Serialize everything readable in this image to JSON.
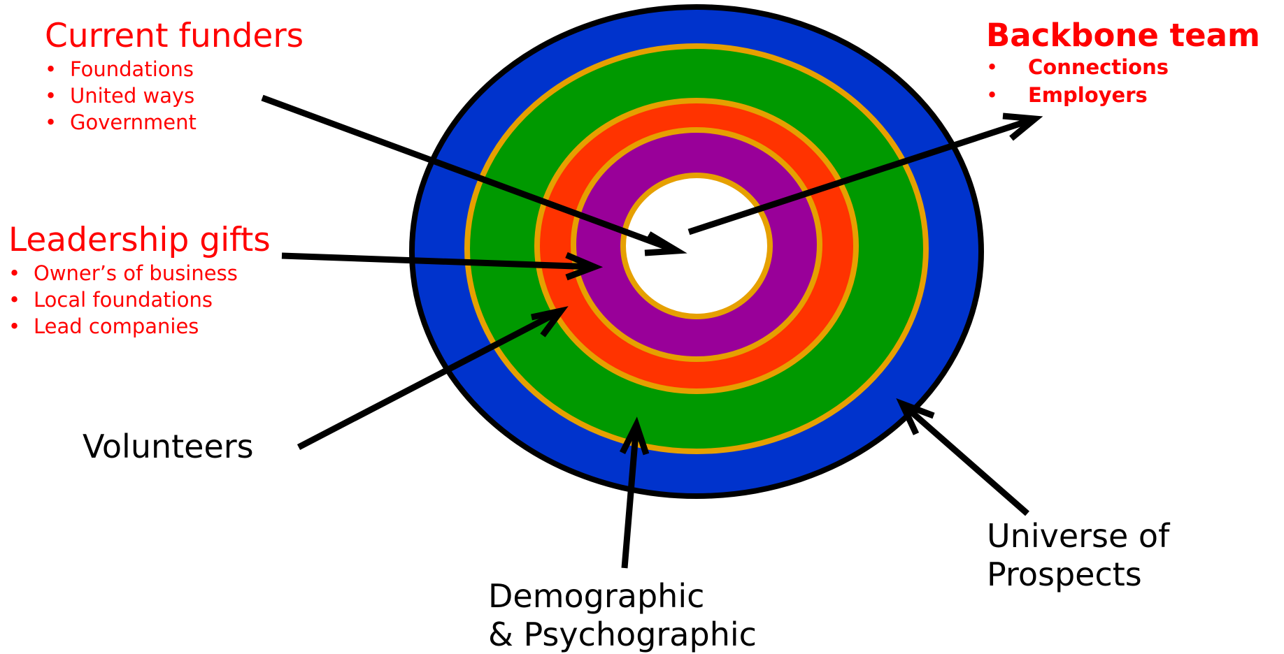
{
  "current_funders": {
    "title": "Current funders",
    "items": [
      "Foundations",
      "United ways",
      "Government"
    ]
  },
  "leadership_gifts": {
    "title": "Leadership gifts",
    "items": [
      "Owner’s of business",
      "Local foundations",
      "Lead companies"
    ]
  },
  "backbone_team": {
    "title": "Backbone team",
    "items": [
      "Connections",
      "Employers"
    ]
  },
  "volunteers": {
    "label": "Volunteers"
  },
  "demographic": {
    "line1": "Demographic",
    "line2": "& Psychographic"
  },
  "universe": {
    "line1": "Universe of",
    "line2": "Prospects"
  },
  "bullet": "•",
  "colors": {
    "label_red": "#ff0000",
    "ring_blue": "#0033cc",
    "ring_green": "#009900",
    "ring_red": "#ff3300",
    "ring_purple": "#990099",
    "ring_gold": "#e6a000",
    "outline": "#000000"
  }
}
